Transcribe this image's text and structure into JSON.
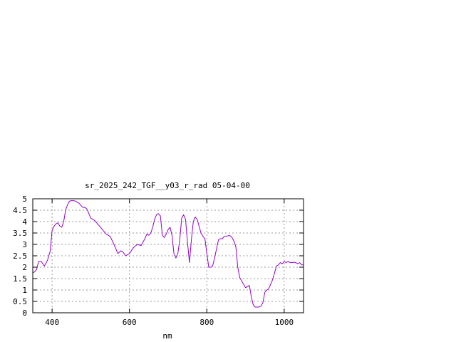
{
  "chart_data": {
    "type": "line",
    "title": "sr_2025_242_TGF__y03_r_rad 05-04-00",
    "xlabel": "nm",
    "ylabel": "",
    "xlim": [
      350,
      1050
    ],
    "ylim": [
      0,
      5
    ],
    "x_ticks": [
      400,
      600,
      800,
      1000
    ],
    "x_tick_labels": [
      "400",
      "600",
      "800",
      "1000"
    ],
    "y_ticks": [
      0,
      0.5,
      1,
      1.5,
      2,
      2.5,
      3,
      3.5,
      4,
      4.5,
      5
    ],
    "y_tick_labels": [
      "0",
      "0.5",
      "1",
      "1.5",
      "2",
      "2.5",
      "3",
      "3.5",
      "4",
      "4.5",
      "5"
    ],
    "grid": true,
    "legend": "none",
    "series": [
      {
        "color": "#9400d3",
        "x": [
          350,
          355,
          360,
          365,
          372,
          380,
          388,
          395,
          400,
          405,
          410,
          415,
          420,
          425,
          430,
          435,
          440,
          445,
          450,
          455,
          460,
          465,
          470,
          475,
          480,
          485,
          490,
          495,
          500,
          510,
          520,
          530,
          540,
          550,
          560,
          570,
          578,
          584,
          590,
          600,
          610,
          620,
          630,
          635,
          640,
          645,
          650,
          655,
          660,
          665,
          670,
          675,
          680,
          685,
          690,
          695,
          700,
          705,
          710,
          715,
          720,
          725,
          730,
          735,
          740,
          745,
          750,
          755,
          760,
          765,
          770,
          775,
          780,
          785,
          790,
          795,
          800,
          805,
          810,
          815,
          820,
          825,
          830,
          835,
          840,
          845,
          850,
          855,
          860,
          865,
          870,
          875,
          880,
          885,
          890,
          895,
          900,
          905,
          910,
          915,
          920,
          925,
          930,
          935,
          940,
          945,
          950,
          955,
          960,
          965,
          970,
          975,
          980,
          985,
          990,
          995,
          1000,
          1005,
          1010,
          1015,
          1020,
          1025,
          1030,
          1035,
          1040,
          1045,
          1050
        ],
        "y": [
          1.75,
          1.8,
          1.9,
          2.25,
          2.25,
          2.05,
          2.3,
          2.7,
          3.6,
          3.8,
          3.9,
          3.95,
          3.8,
          3.75,
          4.0,
          4.5,
          4.75,
          4.9,
          4.92,
          4.92,
          4.9,
          4.85,
          4.8,
          4.7,
          4.62,
          4.62,
          4.55,
          4.35,
          4.15,
          4.05,
          3.85,
          3.65,
          3.45,
          3.35,
          3.0,
          2.6,
          2.72,
          2.65,
          2.5,
          2.6,
          2.85,
          3.0,
          2.95,
          3.1,
          3.25,
          3.45,
          3.4,
          3.5,
          3.75,
          4.1,
          4.3,
          4.35,
          4.25,
          3.4,
          3.3,
          3.45,
          3.65,
          3.75,
          3.4,
          2.6,
          2.4,
          2.6,
          3.2,
          4.15,
          4.3,
          4.1,
          3.1,
          2.2,
          3.2,
          4.0,
          4.2,
          4.1,
          3.8,
          3.5,
          3.35,
          3.25,
          2.6,
          2.0,
          2.0,
          2.05,
          2.4,
          2.8,
          3.2,
          3.25,
          3.25,
          3.35,
          3.35,
          3.38,
          3.38,
          3.3,
          3.15,
          2.9,
          2.0,
          1.55,
          1.4,
          1.25,
          1.1,
          1.15,
          1.2,
          0.7,
          0.35,
          0.25,
          0.25,
          0.25,
          0.3,
          0.45,
          0.9,
          1.0,
          1.05,
          1.25,
          1.45,
          1.75,
          2.05,
          2.1,
          2.2,
          2.15,
          2.25,
          2.2,
          2.25,
          2.2,
          2.2,
          2.22,
          2.2,
          2.15,
          2.2,
          2.1,
          2.1
        ]
      }
    ]
  }
}
